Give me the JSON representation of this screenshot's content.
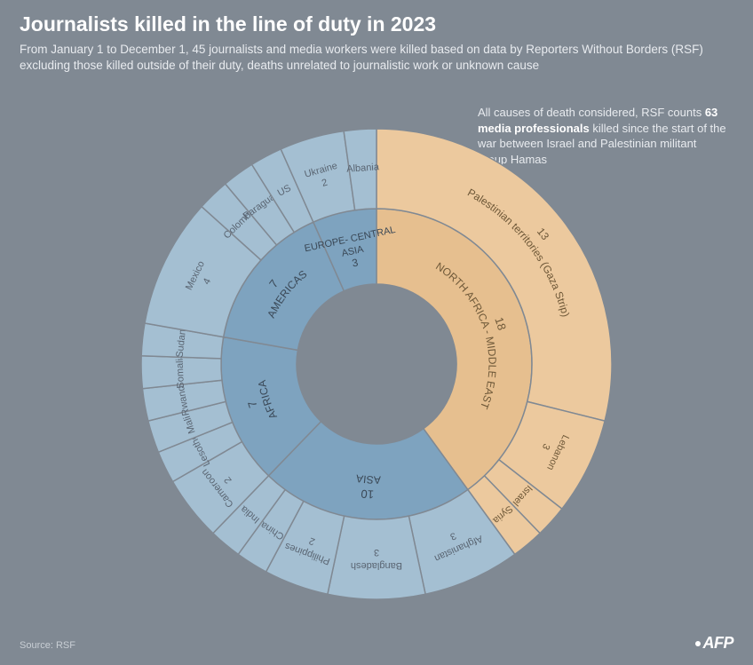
{
  "title": "Journalists killed in the line of duty in 2023",
  "subtitle": "From January 1 to December 1, 45 journalists and media workers were killed based on data by Reporters Without Borders (RSF) excluding those killed outside of their duty, deaths unrelated to journalistic work or unknown cause",
  "annotation_pre": "All causes of death considered, RSF counts ",
  "annotation_bold": "63 media professionals",
  "annotation_post": " killed since the start of the war between Israel and Palestinian militant group Hamas",
  "source": "Source: RSF",
  "logo": "AFP",
  "chart": {
    "type": "sunburst",
    "total": 45,
    "background_color": "#808993",
    "stroke_color": "#808993",
    "text_color_inner": "#3a4856",
    "text_color_outer": "#5a6572",
    "text_color_highlight": "#6e5838",
    "fontsize_region": 12,
    "fontsize_country": 11,
    "inner_r0": 90,
    "inner_r1": 175,
    "outer_r0": 175,
    "outer_r1": 265,
    "inner_hole_color": "#808993",
    "regions": [
      {
        "label": "NORTH AFRICA - MIDDLE EAST",
        "value": 18,
        "color": "#e6bf8f",
        "highlight": true,
        "children": [
          {
            "label": "Palestinian territories (Gaza Strip)",
            "value": 13,
            "color": "#ecc99e"
          },
          {
            "label": "Lebanon",
            "value": 3,
            "color": "#ecc99e"
          },
          {
            "label": "Israel",
            "value": 1,
            "color": "#ecc99e"
          },
          {
            "label": "Syria",
            "value": 1,
            "color": "#ecc99e"
          }
        ]
      },
      {
        "label": "ASIA",
        "value": 10,
        "color": "#7ea3bf",
        "children": [
          {
            "label": "Afghanistan",
            "value": 3,
            "color": "#a4bfd2"
          },
          {
            "label": "Bangladesh",
            "value": 3,
            "color": "#a4bfd2"
          },
          {
            "label": "Philippines",
            "value": 2,
            "color": "#a4bfd2"
          },
          {
            "label": "China",
            "value": 1,
            "color": "#a4bfd2"
          },
          {
            "label": "India",
            "value": 1,
            "color": "#a4bfd2"
          }
        ]
      },
      {
        "label": "AFRICA",
        "value": 7,
        "color": "#7ea3bf",
        "children": [
          {
            "label": "Cameroon",
            "value": 2,
            "color": "#a4bfd2"
          },
          {
            "label": "Lesotho",
            "value": 1,
            "color": "#a4bfd2"
          },
          {
            "label": "Mali",
            "value": 1,
            "color": "#a4bfd2"
          },
          {
            "label": "Rwanda",
            "value": 1,
            "color": "#a4bfd2"
          },
          {
            "label": "Somalia",
            "value": 1,
            "color": "#a4bfd2"
          },
          {
            "label": "Sudan",
            "value": 1,
            "color": "#a4bfd2"
          }
        ]
      },
      {
        "label": "AMERICAS",
        "value": 7,
        "color": "#7ea3bf",
        "children": [
          {
            "label": "Mexico",
            "value": 4,
            "color": "#a4bfd2"
          },
          {
            "label": "Colombia",
            "value": 1,
            "color": "#a4bfd2"
          },
          {
            "label": "Paraguay",
            "value": 1,
            "color": "#a4bfd2"
          },
          {
            "label": "US",
            "value": 1,
            "color": "#a4bfd2"
          }
        ]
      },
      {
        "label": "EUROPE- CENTRAL ASIA",
        "value": 3,
        "color": "#7ea3bf",
        "children": [
          {
            "label": "Ukraine",
            "value": 2,
            "color": "#a4bfd2"
          },
          {
            "label": "Albania",
            "value": 1,
            "color": "#a4bfd2"
          }
        ]
      }
    ]
  }
}
